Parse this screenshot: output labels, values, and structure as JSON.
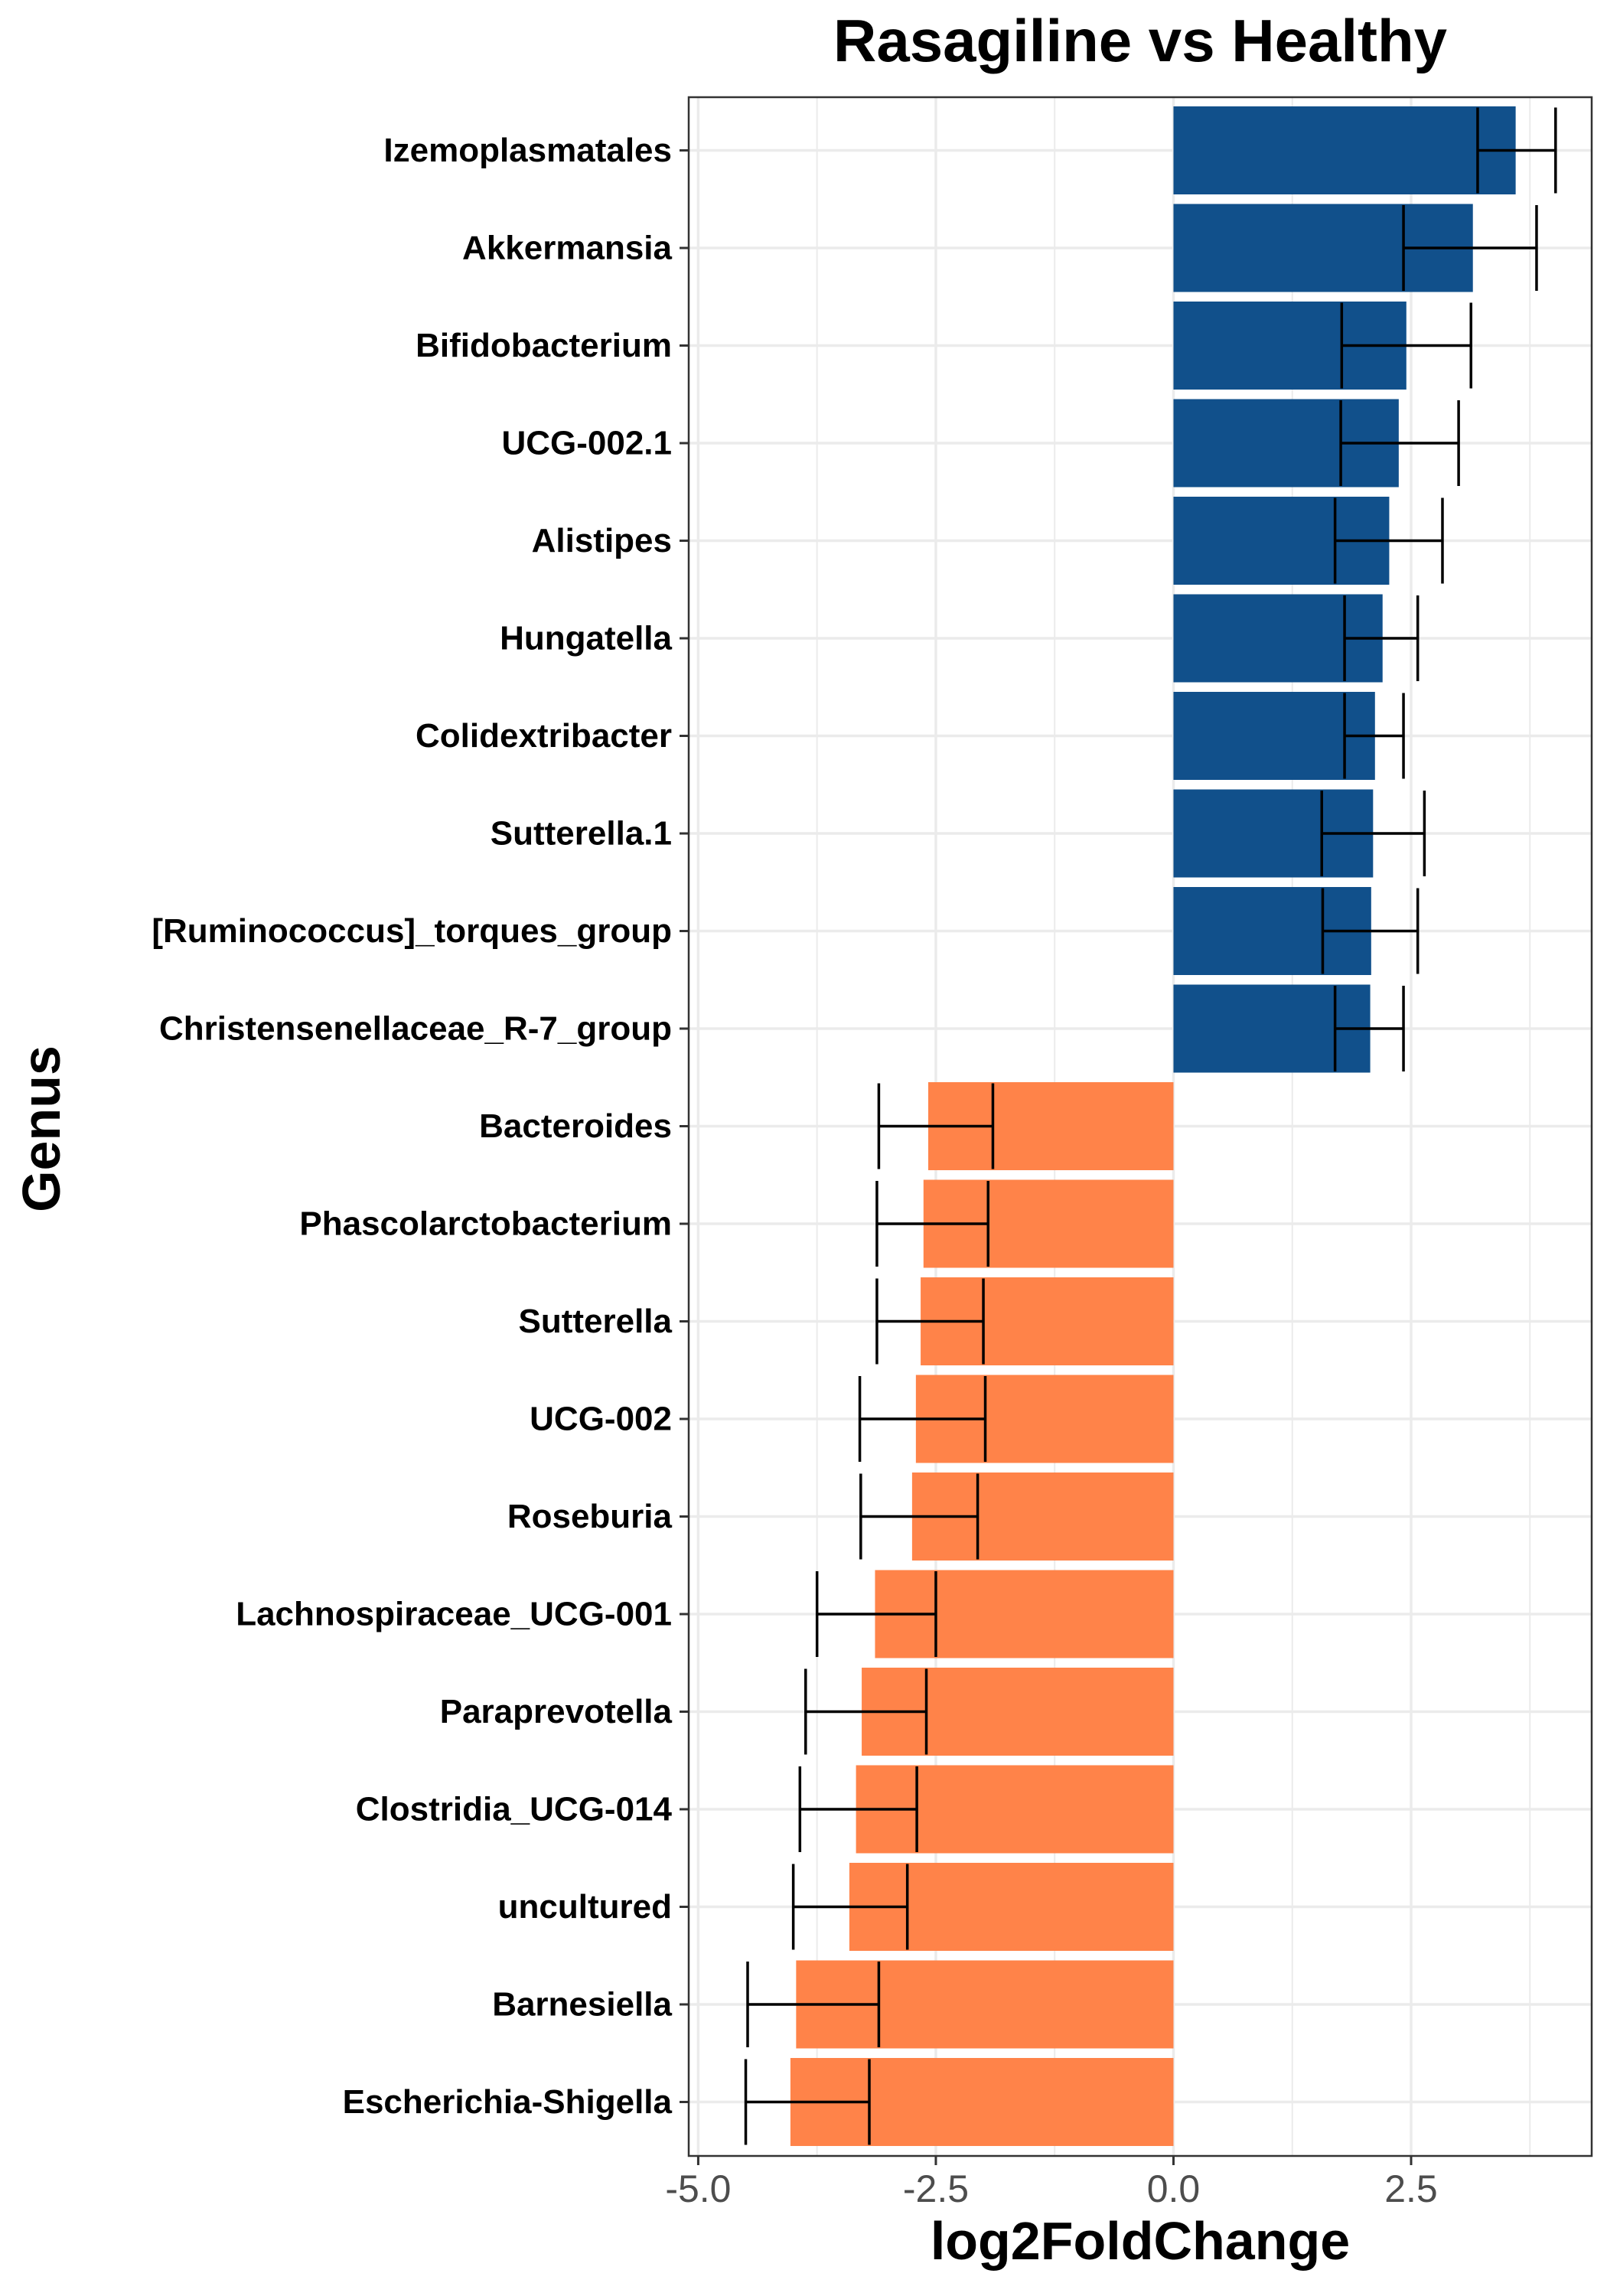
{
  "chart_data": {
    "type": "bar",
    "orientation": "horizontal",
    "title": "Rasagiline vs Healthy",
    "xlabel": "log2FoldChange",
    "ylabel": "Genus",
    "xlim": [
      -5.1,
      4.4
    ],
    "xticks": [
      "-5.0",
      "-2.5",
      "0.0",
      "2.5"
    ],
    "xtick_values": [
      -5.0,
      -2.5,
      0.0,
      2.5
    ],
    "grid": true,
    "legend": "none",
    "colors": {
      "positive": "#11508B",
      "negative": "#FF8349",
      "errorbar": "#000000",
      "grid": "#EBEBEB"
    },
    "categories": [
      "Izemoplasmatales",
      "Akkermansia",
      "Bifidobacterium",
      "UCG-002.1",
      "Alistipes",
      "Hungatella",
      "Colidextribacter",
      "Sutterella.1",
      "[Ruminococcus]_torques_group",
      "Christensenellaceae_R-7_group",
      "Bacteroides",
      "Phascolarctobacterium",
      "Sutterella",
      "UCG-002",
      "Roseburia",
      "Lachnospiraceae_UCG-001",
      "Paraprevotella",
      "Clostridia_UCG-014",
      "uncultured",
      "Barnesiella",
      "Escherichia-Shigella"
    ],
    "values": [
      3.6,
      3.15,
      2.45,
      2.37,
      2.27,
      2.2,
      2.12,
      2.1,
      2.08,
      2.07,
      -2.58,
      -2.63,
      -2.66,
      -2.71,
      -2.75,
      -3.14,
      -3.28,
      -3.34,
      -3.41,
      -3.97,
      -4.03
    ],
    "error_low": [
      3.2,
      2.42,
      1.77,
      1.76,
      1.7,
      1.8,
      1.8,
      1.56,
      1.57,
      1.7,
      -1.9,
      -1.95,
      -2.0,
      -1.98,
      -2.06,
      -2.5,
      -2.6,
      -2.7,
      -2.8,
      -3.1,
      -3.2
    ],
    "error_high": [
      4.02,
      3.82,
      3.13,
      3.0,
      2.83,
      2.57,
      2.42,
      2.64,
      2.57,
      2.42,
      -3.1,
      -3.12,
      -3.12,
      -3.3,
      -3.29,
      -3.75,
      -3.87,
      -3.93,
      -4.0,
      -4.48,
      -4.5
    ]
  }
}
